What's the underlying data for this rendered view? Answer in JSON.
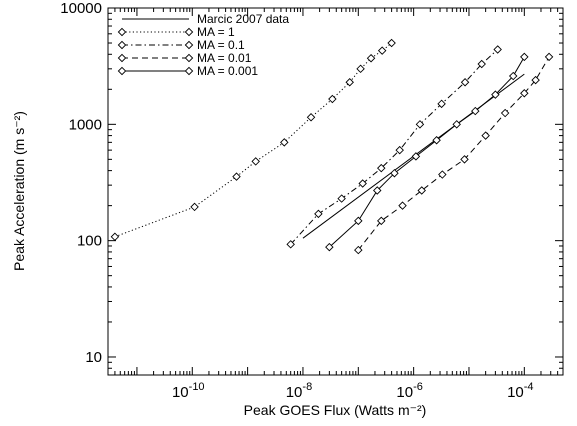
{
  "chart_data": {
    "type": "line",
    "xlabel": "Peak GOES Flux (Watts m⁻²)",
    "ylabel": "Peak Acceleration (m s⁻²)",
    "x_scale": "log",
    "y_scale": "log",
    "xlim": [
      3e-12,
      0.0005
    ],
    "ylim": [
      7,
      10000
    ],
    "x_ticks": [
      {
        "value": 1e-10,
        "base": "10",
        "exp": "-10"
      },
      {
        "value": 1e-08,
        "base": "10",
        "exp": "-8"
      },
      {
        "value": 1e-06,
        "base": "10",
        "exp": "-6"
      },
      {
        "value": 0.0001,
        "base": "10",
        "exp": "-4"
      }
    ],
    "y_ticks": [
      {
        "value": 10,
        "label": "10"
      },
      {
        "value": 100,
        "label": "100"
      },
      {
        "value": 1000,
        "label": "1000"
      },
      {
        "value": 10000,
        "label": "10000"
      }
    ],
    "grid": false,
    "legend_position": "top-left",
    "series": [
      {
        "name": "Marcic 2007 data",
        "style": "solid",
        "marker": "none",
        "x": [
          1e-08,
          0.0001
        ],
        "y": [
          105,
          2700
        ]
      },
      {
        "name": "MA = 1",
        "style": "dotted",
        "marker": "diamond",
        "x": [
          4e-12,
          1.1e-10,
          6.3e-10,
          1.4e-09,
          4.6e-09,
          1.4e-08,
          3.4e-08,
          7e-08,
          1.1e-07,
          1.7e-07,
          2.7e-07,
          4e-07
        ],
        "y": [
          108,
          195,
          355,
          480,
          700,
          1150,
          1650,
          2300,
          3000,
          3700,
          4300,
          5000
        ]
      },
      {
        "name": "MA = 0.1",
        "style": "dashdot",
        "marker": "diamond",
        "x": [
          6e-09,
          1.9e-08,
          5e-08,
          1.2e-07,
          2.6e-07,
          5.6e-07,
          1.3e-06,
          3.2e-06,
          8.5e-06,
          1.7e-05,
          3.3e-05
        ],
        "y": [
          93,
          170,
          230,
          310,
          420,
          600,
          1000,
          1500,
          2300,
          3300,
          4400
        ]
      },
      {
        "name": "MA = 0.01",
        "style": "dashed",
        "marker": "diamond",
        "x": [
          1e-07,
          2.6e-07,
          6.3e-07,
          1.4e-06,
          3.3e-06,
          8.3e-06,
          2e-05,
          4.5e-05,
          0.0001,
          0.00016,
          0.00028
        ],
        "y": [
          83,
          148,
          200,
          270,
          370,
          500,
          800,
          1250,
          1850,
          2400,
          3800
        ]
      },
      {
        "name": "MA = 0.001",
        "style": "solid",
        "marker": "diamond",
        "x": [
          3e-08,
          1e-07,
          2.2e-07,
          4.5e-07,
          1.1e-06,
          2.6e-06,
          6e-06,
          1.3e-05,
          3e-05,
          6.3e-05,
          0.0001
        ],
        "y": [
          88,
          148,
          270,
          380,
          530,
          730,
          1000,
          1300,
          1800,
          2600,
          3800
        ]
      }
    ]
  }
}
